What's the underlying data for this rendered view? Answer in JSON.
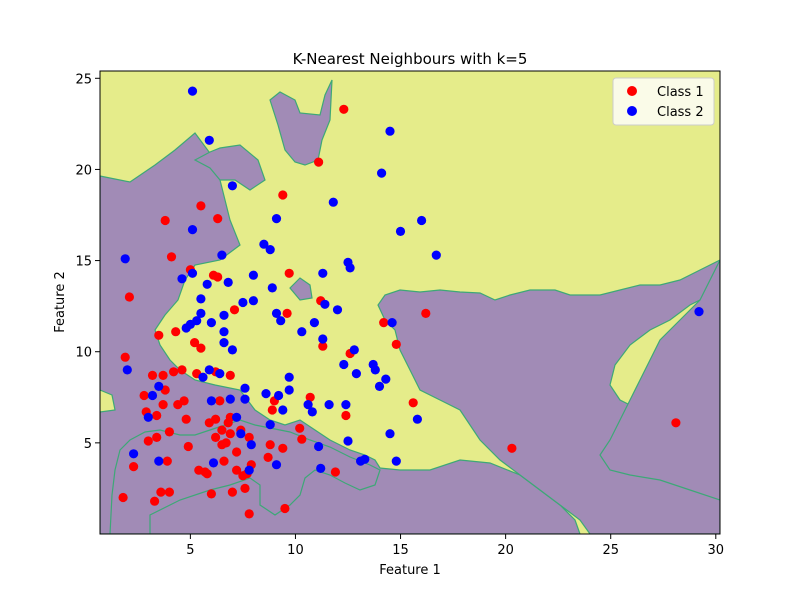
{
  "chart_data": {
    "type": "scatter",
    "title": "K-Nearest Neighbours with k=5",
    "xlabel": "Feature 1",
    "ylabel": "Feature 2",
    "xlim": [
      0.7,
      30.2
    ],
    "ylim": [
      0.0,
      25.4
    ],
    "xticks": [
      5,
      10,
      15,
      20,
      25,
      30
    ],
    "yticks": [
      5,
      10,
      15,
      20,
      25
    ],
    "grid": false,
    "legend_position": "top-right",
    "background_regions": {
      "class_1_color": "#e5ec8a",
      "class_2_color": "#a18bb6",
      "boundary_color": "#3da877",
      "description": "decision regions: yellow = Class 1, purple = Class 2"
    },
    "series": [
      {
        "name": "Class 1",
        "color": "#ff0000",
        "points": [
          [
            1.8,
            2.0
          ],
          [
            1.9,
            9.7
          ],
          [
            2.1,
            13.0
          ],
          [
            2.3,
            3.7
          ],
          [
            2.8,
            7.6
          ],
          [
            2.9,
            6.7
          ],
          [
            3.0,
            5.1
          ],
          [
            3.2,
            8.7
          ],
          [
            3.3,
            1.8
          ],
          [
            3.4,
            5.3
          ],
          [
            3.4,
            6.5
          ],
          [
            3.5,
            10.9
          ],
          [
            3.6,
            2.3
          ],
          [
            3.7,
            7.1
          ],
          [
            3.7,
            8.7
          ],
          [
            3.8,
            17.2
          ],
          [
            3.8,
            7.9
          ],
          [
            3.9,
            4.0
          ],
          [
            4.0,
            2.3
          ],
          [
            4.0,
            5.6
          ],
          [
            4.1,
            15.2
          ],
          [
            4.2,
            8.9
          ],
          [
            4.3,
            11.1
          ],
          [
            4.4,
            7.1
          ],
          [
            4.6,
            9.0
          ],
          [
            4.7,
            7.3
          ],
          [
            4.8,
            6.3
          ],
          [
            4.9,
            4.8
          ],
          [
            5.0,
            14.5
          ],
          [
            5.2,
            10.5
          ],
          [
            5.3,
            8.8
          ],
          [
            5.4,
            3.5
          ],
          [
            5.5,
            18.0
          ],
          [
            5.5,
            10.2
          ],
          [
            5.7,
            3.4
          ],
          [
            5.8,
            3.3
          ],
          [
            5.9,
            6.1
          ],
          [
            6.0,
            2.2
          ],
          [
            6.1,
            14.2
          ],
          [
            6.2,
            6.3
          ],
          [
            6.2,
            8.9
          ],
          [
            6.2,
            5.3
          ],
          [
            6.3,
            17.3
          ],
          [
            6.3,
            14.1
          ],
          [
            6.4,
            7.3
          ],
          [
            6.5,
            4.9
          ],
          [
            6.5,
            5.7
          ],
          [
            6.6,
            4.0
          ],
          [
            6.7,
            5.0
          ],
          [
            6.8,
            6.1
          ],
          [
            6.9,
            6.4
          ],
          [
            6.9,
            5.5
          ],
          [
            6.9,
            8.7
          ],
          [
            7.0,
            2.3
          ],
          [
            7.1,
            12.3
          ],
          [
            7.2,
            4.5
          ],
          [
            7.2,
            3.5
          ],
          [
            7.4,
            5.7
          ],
          [
            7.5,
            3.2
          ],
          [
            7.6,
            2.5
          ],
          [
            7.7,
            3.3
          ],
          [
            7.8,
            5.3
          ],
          [
            7.8,
            1.1
          ],
          [
            7.9,
            3.8
          ],
          [
            8.7,
            4.2
          ],
          [
            8.8,
            4.9
          ],
          [
            8.9,
            6.8
          ],
          [
            9.0,
            7.3
          ],
          [
            9.4,
            18.6
          ],
          [
            9.4,
            4.7
          ],
          [
            9.5,
            1.4
          ],
          [
            9.6,
            12.1
          ],
          [
            9.7,
            14.3
          ],
          [
            10.2,
            5.8
          ],
          [
            10.3,
            5.2
          ],
          [
            10.7,
            7.5
          ],
          [
            11.1,
            20.4
          ],
          [
            11.2,
            12.8
          ],
          [
            11.3,
            10.3
          ],
          [
            11.9,
            3.4
          ],
          [
            12.3,
            23.3
          ],
          [
            12.4,
            6.5
          ],
          [
            12.6,
            9.9
          ],
          [
            14.2,
            11.6
          ],
          [
            14.8,
            10.4
          ],
          [
            15.6,
            7.2
          ],
          [
            16.2,
            12.1
          ],
          [
            20.3,
            4.7
          ],
          [
            28.1,
            6.1
          ]
        ]
      },
      {
        "name": "Class 2",
        "color": "#0000ff",
        "points": [
          [
            1.9,
            15.1
          ],
          [
            2.0,
            9.0
          ],
          [
            2.3,
            4.4
          ],
          [
            3.0,
            6.4
          ],
          [
            3.2,
            7.6
          ],
          [
            3.5,
            8.1
          ],
          [
            3.5,
            4.0
          ],
          [
            4.6,
            14.0
          ],
          [
            4.8,
            11.3
          ],
          [
            5.0,
            11.5
          ],
          [
            5.1,
            16.7
          ],
          [
            5.1,
            14.3
          ],
          [
            5.1,
            24.3
          ],
          [
            5.3,
            11.7
          ],
          [
            5.5,
            12.1
          ],
          [
            5.5,
            12.9
          ],
          [
            5.6,
            8.6
          ],
          [
            5.8,
            13.7
          ],
          [
            5.9,
            21.6
          ],
          [
            5.9,
            9.0
          ],
          [
            6.0,
            11.6
          ],
          [
            6.0,
            7.3
          ],
          [
            6.1,
            3.9
          ],
          [
            6.4,
            8.8
          ],
          [
            6.5,
            15.3
          ],
          [
            6.6,
            12.0
          ],
          [
            6.6,
            10.5
          ],
          [
            6.6,
            11.1
          ],
          [
            6.8,
            13.8
          ],
          [
            6.9,
            7.4
          ],
          [
            7.0,
            19.1
          ],
          [
            7.0,
            10.1
          ],
          [
            7.2,
            6.4
          ],
          [
            7.4,
            5.5
          ],
          [
            7.5,
            12.7
          ],
          [
            7.6,
            7.4
          ],
          [
            7.6,
            8.0
          ],
          [
            7.8,
            3.5
          ],
          [
            7.9,
            4.9
          ],
          [
            8.0,
            12.8
          ],
          [
            8.0,
            14.2
          ],
          [
            8.5,
            15.9
          ],
          [
            8.6,
            7.7
          ],
          [
            8.8,
            6.0
          ],
          [
            8.8,
            15.6
          ],
          [
            8.9,
            13.5
          ],
          [
            9.1,
            3.8
          ],
          [
            9.1,
            12.1
          ],
          [
            9.1,
            17.3
          ],
          [
            9.2,
            7.6
          ],
          [
            9.3,
            11.7
          ],
          [
            9.4,
            6.8
          ],
          [
            9.7,
            8.6
          ],
          [
            9.7,
            7.9
          ],
          [
            10.3,
            11.1
          ],
          [
            10.6,
            7.1
          ],
          [
            10.8,
            6.7
          ],
          [
            10.9,
            11.6
          ],
          [
            11.1,
            4.8
          ],
          [
            11.2,
            3.6
          ],
          [
            11.3,
            10.7
          ],
          [
            11.3,
            14.3
          ],
          [
            11.4,
            12.6
          ],
          [
            11.6,
            7.1
          ],
          [
            11.8,
            18.2
          ],
          [
            12.0,
            12.3
          ],
          [
            12.3,
            9.3
          ],
          [
            12.4,
            7.1
          ],
          [
            12.5,
            5.1
          ],
          [
            12.5,
            14.9
          ],
          [
            12.6,
            14.6
          ],
          [
            12.8,
            10.1
          ],
          [
            12.9,
            8.8
          ],
          [
            13.1,
            4.0
          ],
          [
            13.3,
            4.1
          ],
          [
            13.7,
            9.3
          ],
          [
            13.8,
            9.0
          ],
          [
            14.0,
            8.1
          ],
          [
            14.1,
            19.8
          ],
          [
            14.3,
            8.5
          ],
          [
            14.5,
            22.1
          ],
          [
            14.5,
            5.5
          ],
          [
            14.6,
            11.6
          ],
          [
            14.8,
            4.0
          ],
          [
            15.0,
            16.6
          ],
          [
            15.8,
            6.3
          ],
          [
            16.0,
            17.2
          ],
          [
            16.7,
            15.3
          ],
          [
            29.2,
            12.2
          ]
        ]
      }
    ]
  }
}
